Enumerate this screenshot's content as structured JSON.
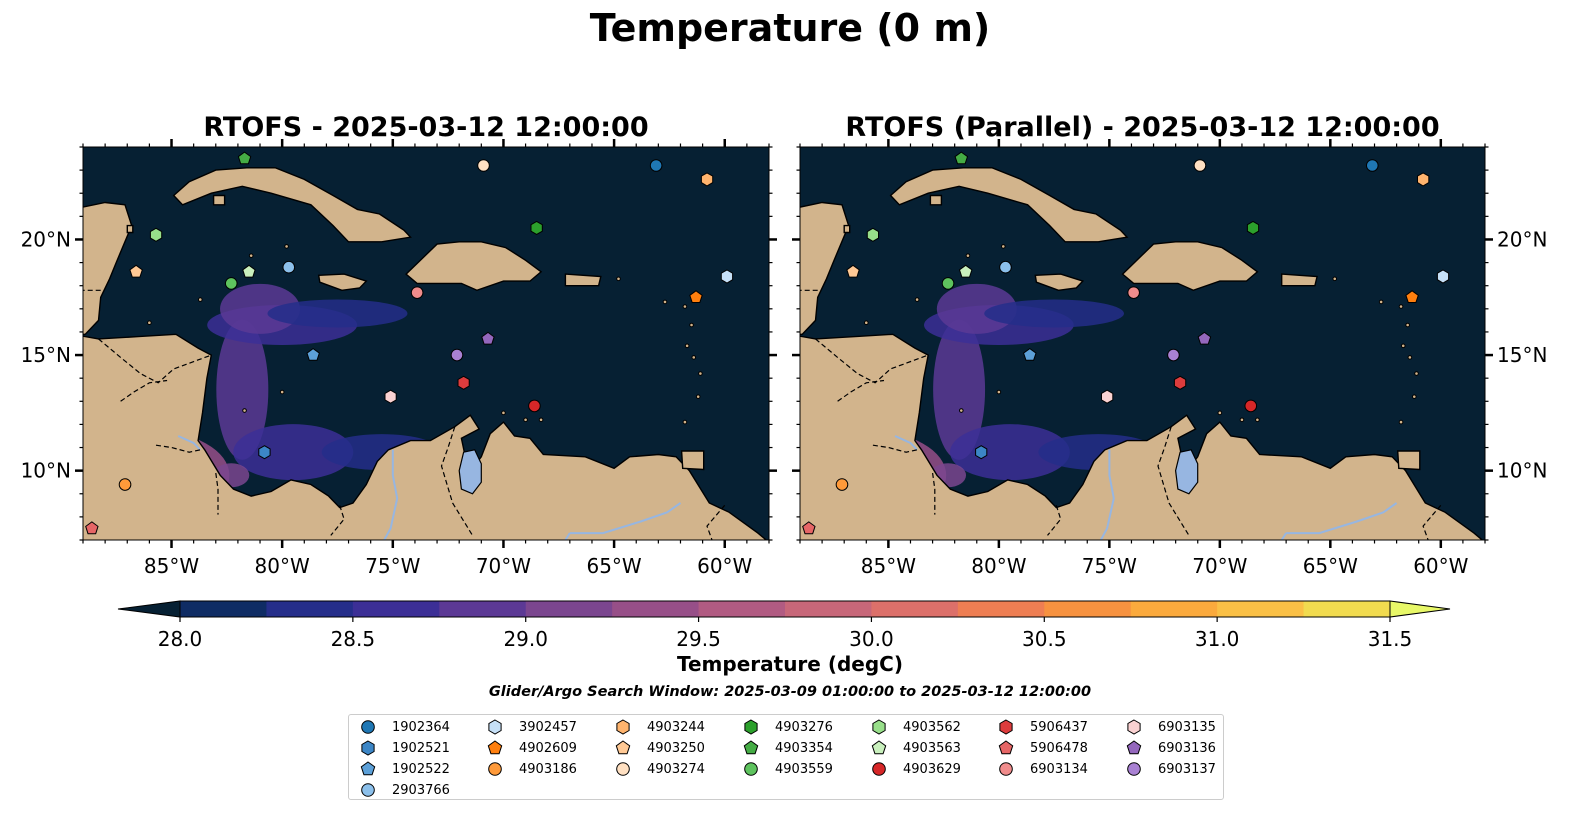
{
  "title": "Temperature (0 m)",
  "panels": [
    {
      "title": "RTOFS - 2025-03-12 12:00:00"
    },
    {
      "title": "RTOFS (Parallel) - 2025-03-12 12:00:00"
    }
  ],
  "map": {
    "lon_range": [
      -89,
      -58
    ],
    "lat_range": [
      7,
      24
    ],
    "lon_ticks": [
      "85°W",
      "80°W",
      "75°W",
      "70°W",
      "65°W",
      "60°W"
    ],
    "lat_ticks": [
      "10°N",
      "15°N",
      "20°N"
    ],
    "ocean_color": "#062033",
    "land_color": "#d2b48c",
    "lake_color": "#97b6e1"
  },
  "colorbar": {
    "label": "Temperature (degC)",
    "min": 28.0,
    "max": 31.5,
    "ticks": [
      "28.0",
      "28.5",
      "29.0",
      "29.5",
      "30.0",
      "30.5",
      "31.0",
      "31.5"
    ],
    "colors": [
      "#062033",
      "#0f2c64",
      "#252e8a",
      "#3c2f96",
      "#5c3995",
      "#7b468f",
      "#974f88",
      "#b15b82",
      "#c76779",
      "#dc706a",
      "#ee7e53",
      "#f79240",
      "#fbaa3d",
      "#fac046",
      "#f1db4f",
      "#e8f868"
    ]
  },
  "search_window": "Glider/Argo Search Window: 2025-03-09 01:00:00 to 2025-03-12 12:00:00",
  "legend": [
    {
      "id": "1902364",
      "marker": "circle",
      "color": "#1f77b4"
    },
    {
      "id": "1902521",
      "marker": "hexagon",
      "color": "#3c86c6"
    },
    {
      "id": "1902522",
      "marker": "pentagon",
      "color": "#5ca0d8"
    },
    {
      "id": "2903766",
      "marker": "circle",
      "color": "#8cc0eb"
    },
    {
      "id": "3902457",
      "marker": "hexagon",
      "color": "#c6e0f7"
    },
    {
      "id": "4902609",
      "marker": "pentagon",
      "color": "#ff7f0e"
    },
    {
      "id": "4903186",
      "marker": "circle",
      "color": "#ff9a3a"
    },
    {
      "id": "4903244",
      "marker": "hexagon",
      "color": "#ffb46e"
    },
    {
      "id": "4903250",
      "marker": "pentagon",
      "color": "#ffc995"
    },
    {
      "id": "4903274",
      "marker": "circle",
      "color": "#ffe0c2"
    },
    {
      "id": "4903276",
      "marker": "hexagon",
      "color": "#2ca02c"
    },
    {
      "id": "4903354",
      "marker": "pentagon",
      "color": "#45ac45"
    },
    {
      "id": "4903559",
      "marker": "circle",
      "color": "#5ec35e"
    },
    {
      "id": "4903562",
      "marker": "hexagon",
      "color": "#98df8a"
    },
    {
      "id": "4903563",
      "marker": "pentagon",
      "color": "#c9f0bd"
    },
    {
      "id": "4903629",
      "marker": "circle",
      "color": "#d62728"
    },
    {
      "id": "5906437",
      "marker": "hexagon",
      "color": "#dd3c3d"
    },
    {
      "id": "5906478",
      "marker": "pentagon",
      "color": "#e66666"
    },
    {
      "id": "6903134",
      "marker": "circle",
      "color": "#f08c8c"
    },
    {
      "id": "6903135",
      "marker": "hexagon",
      "color": "#fad2d2"
    },
    {
      "id": "6903136",
      "marker": "pentagon",
      "color": "#9467bd"
    },
    {
      "id": "6903137",
      "marker": "circle",
      "color": "#a981d3"
    }
  ],
  "floats": [
    {
      "id": "1902364",
      "lon": -63.1,
      "lat": 23.2
    },
    {
      "id": "1902521",
      "lon": -80.8,
      "lat": 10.8
    },
    {
      "id": "1902522",
      "lon": -78.6,
      "lat": 15.0
    },
    {
      "id": "2903766",
      "lon": -79.7,
      "lat": 18.8
    },
    {
      "id": "3902457",
      "lon": -59.9,
      "lat": 18.4
    },
    {
      "id": "4902609",
      "lon": -61.3,
      "lat": 17.5
    },
    {
      "id": "4903186",
      "lon": -87.1,
      "lat": 9.4
    },
    {
      "id": "4903244",
      "lon": -60.8,
      "lat": 22.6
    },
    {
      "id": "4903250",
      "lon": -86.6,
      "lat": 18.6
    },
    {
      "id": "4903274",
      "lon": -70.9,
      "lat": 23.2
    },
    {
      "id": "4903276",
      "lon": -68.5,
      "lat": 20.5
    },
    {
      "id": "4903354",
      "lon": -81.7,
      "lat": 23.5
    },
    {
      "id": "4903559",
      "lon": -82.3,
      "lat": 18.1
    },
    {
      "id": "4903562",
      "lon": -85.7,
      "lat": 20.2
    },
    {
      "id": "4903563",
      "lon": -81.5,
      "lat": 18.6
    },
    {
      "id": "4903629",
      "lon": -68.6,
      "lat": 12.8
    },
    {
      "id": "5906437",
      "lon": -71.8,
      "lat": 13.8
    },
    {
      "id": "5906478",
      "lon": -88.6,
      "lat": 7.5
    },
    {
      "id": "6903134",
      "lon": -73.9,
      "lat": 17.7
    },
    {
      "id": "6903135",
      "lon": -75.1,
      "lat": 13.2
    },
    {
      "id": "6903136",
      "lon": -70.7,
      "lat": 15.7
    },
    {
      "id": "6903137",
      "lon": -72.1,
      "lat": 15.0
    }
  ]
}
